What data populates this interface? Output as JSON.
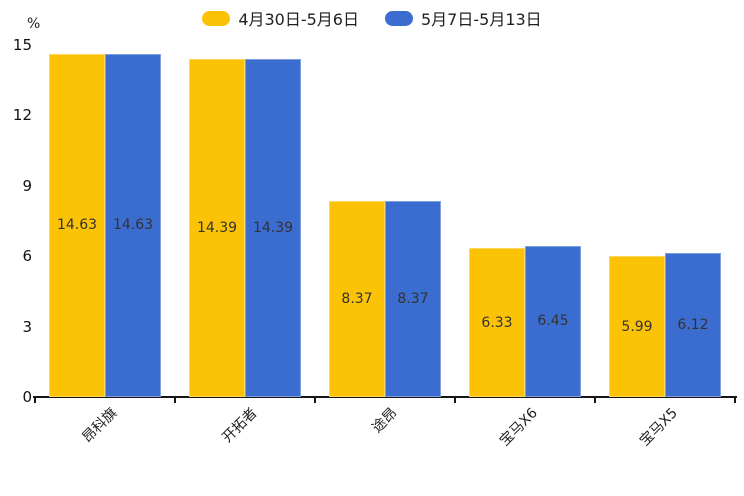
{
  "chart_data": {
    "type": "bar",
    "title": "",
    "ylabel": "%",
    "categories": [
      "昂科旗",
      "开拓者",
      "途昂",
      "宝马X6",
      "宝马X5"
    ],
    "series": [
      {
        "name": "4月30日-5月6日",
        "color": "#FCC306",
        "values": [
          14.63,
          14.39,
          8.37,
          6.33,
          5.99
        ]
      },
      {
        "name": "5月7日-5月13日",
        "color": "#3B6CD0",
        "values": [
          14.63,
          14.39,
          8.37,
          6.45,
          6.12
        ]
      }
    ],
    "bar_value_labels": [
      "14.63",
      "14.39",
      "8.37",
      "6.33",
      "5.99",
      "14.63",
      "14.39",
      "8.37",
      "6.45",
      "6.12"
    ],
    "ylim": [
      0,
      15
    ],
    "yticks": [
      0,
      3,
      6,
      9,
      12,
      15
    ],
    "grid": false,
    "legend_position": "top-center",
    "value_label_color": "#333333",
    "axis_color": "#161616"
  }
}
